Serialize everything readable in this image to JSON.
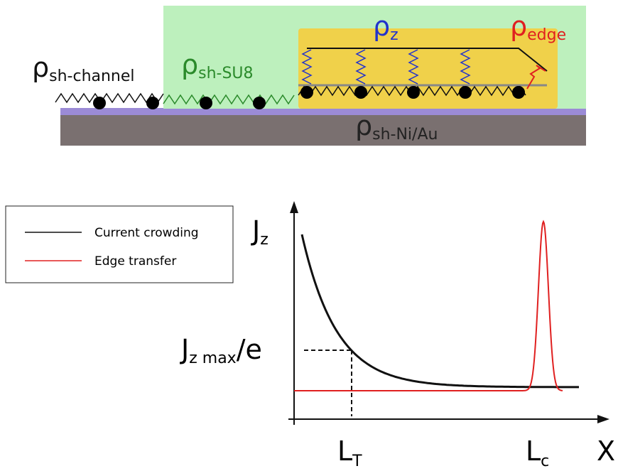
{
  "top_diagram": {
    "labels": [
      {
        "symbol": "ρ",
        "subscript": "sh-channel"
      },
      {
        "symbol": "ρ",
        "subscript": "sh-SU8"
      },
      {
        "symbol": "ρ",
        "subscript": "z"
      },
      {
        "symbol": "ρ",
        "subscript": "edge"
      },
      {
        "symbol": "ρ",
        "subscript": "sh-Ni/Au"
      }
    ]
  },
  "plot": {
    "legend": [
      "Current crowding",
      "Edge transfer"
    ],
    "y_axis": {
      "symbol": "J",
      "subscript": "z"
    },
    "x_axis": "X",
    "level": {
      "symbol": "J",
      "subscript": "z max",
      "suffix": "/e"
    },
    "marks": [
      {
        "symbol": "L",
        "subscript": "T"
      },
      {
        "symbol": "L",
        "subscript": "c"
      }
    ]
  }
}
